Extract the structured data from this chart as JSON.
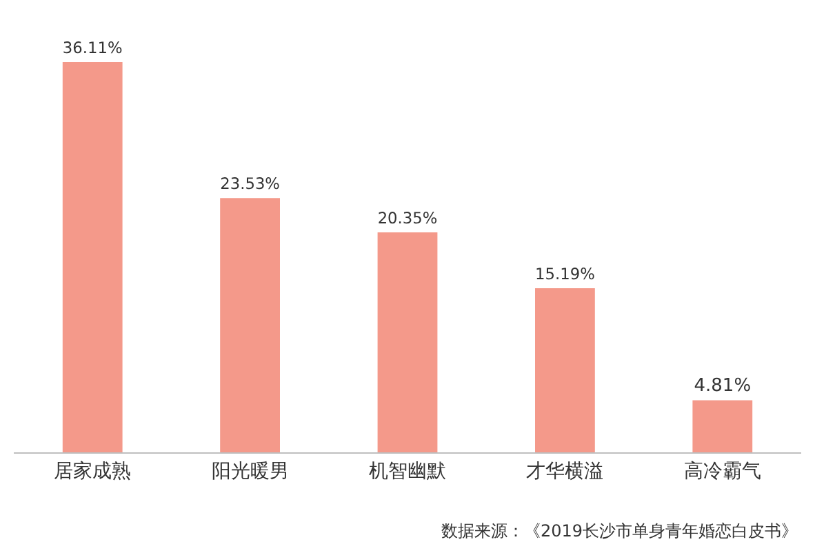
{
  "chart_data": {
    "type": "bar",
    "categories": [
      "居家成熟",
      "阳光暖男",
      "机智幽默",
      "才华横溢",
      "高冷霸气"
    ],
    "values": [
      36.11,
      23.53,
      20.35,
      15.19,
      4.81
    ],
    "value_labels": [
      "36.11%",
      "23.53%",
      "20.35%",
      "15.19%",
      "4.81%"
    ],
    "color": "#f4998a",
    "annotations": [
      "数据来源：《2019长沙市单身青年婚恋白皮书》"
    ]
  }
}
